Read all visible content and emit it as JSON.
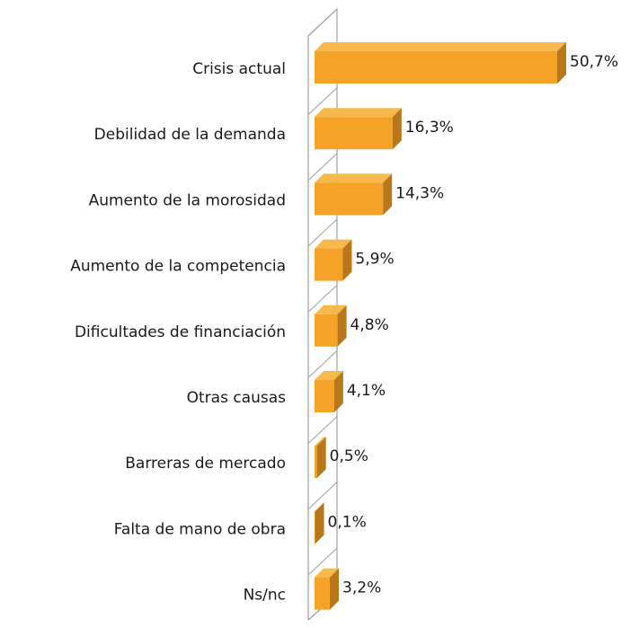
{
  "chart_data": {
    "type": "bar3d_horizontal",
    "categories": [
      "Crisis actual",
      "Debilidad de la demanda",
      "Aumento de la morosidad",
      "Aumento de la competencia",
      "Dificultades de financiación",
      "Otras causas",
      "Barreras de mercado",
      "Falta de mano de obra",
      "Ns/nc"
    ],
    "values": [
      50.7,
      16.3,
      14.3,
      5.9,
      4.8,
      4.1,
      0.5,
      0.1,
      3.2
    ],
    "value_labels": [
      "50,7%",
      "16,3%",
      "14,3%",
      "5,9%",
      "4,8%",
      "4,1%",
      "0,5%",
      "0,1%",
      "3,2%"
    ],
    "color": "#f4a228"
  }
}
